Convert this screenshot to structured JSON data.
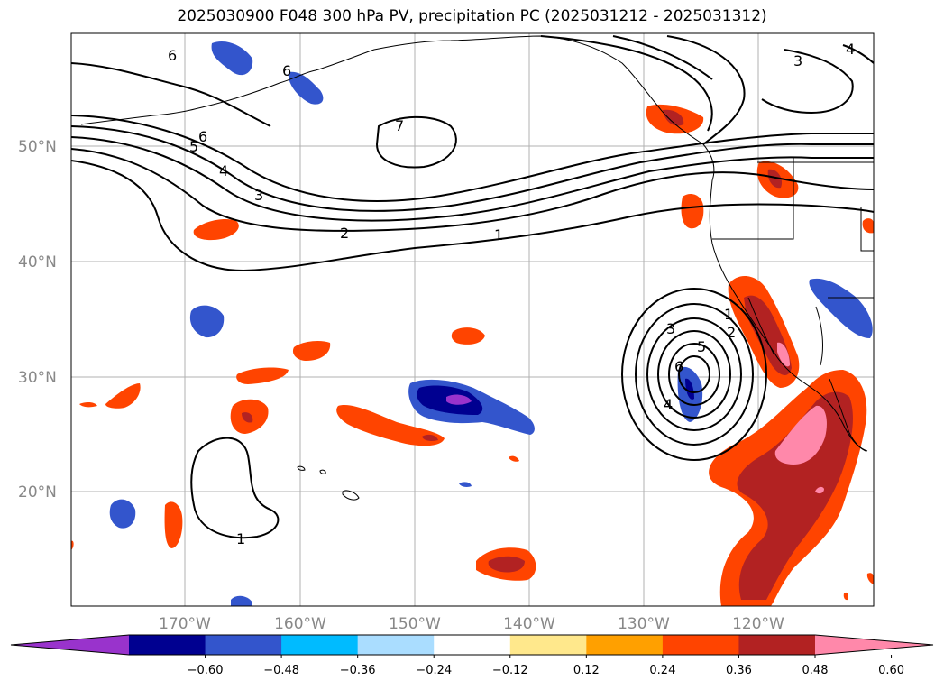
{
  "title": "2025030900 F048 300 hPa PV, precipitation PC (2025031212 - 2025031312)",
  "map": {
    "lat_labels": [
      "50°N",
      "40°N",
      "30°N",
      "20°N"
    ],
    "lon_labels": [
      "170°W",
      "160°W",
      "150°W",
      "140°W",
      "130°W",
      "120°W"
    ],
    "pv_contour_labels": [
      "1",
      "2",
      "3",
      "4",
      "5",
      "6",
      "7"
    ]
  },
  "colorbar": {
    "ticks": [
      "−0.60",
      "−0.48",
      "−0.36",
      "−0.24",
      "−0.12",
      "0.12",
      "0.24",
      "0.36",
      "0.48",
      "0.60"
    ],
    "colors": [
      "#9933cc",
      "#000090",
      "#3355cc",
      "#00bbff",
      "#aaddff",
      "#ffffff",
      "#ffe88c",
      "#ffa000",
      "#ff4400",
      "#b22222",
      "#ff88aa"
    ]
  }
}
